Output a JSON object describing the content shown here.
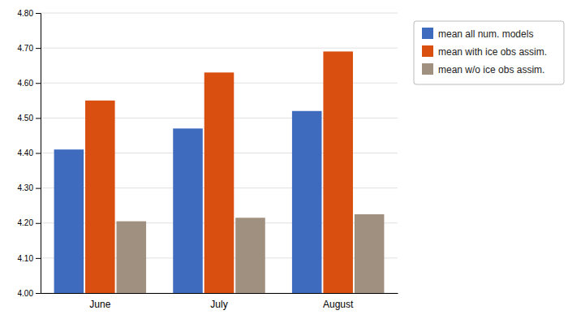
{
  "chart_data": {
    "type": "bar",
    "categories": [
      "June",
      "July",
      "August"
    ],
    "series": [
      {
        "name": "mean all num. models",
        "color": "#3f6bbf",
        "values": [
          4.41,
          4.47,
          4.52
        ]
      },
      {
        "name": "mean with ice obs assim.",
        "color": "#d94f10",
        "values": [
          4.55,
          4.63,
          4.69
        ]
      },
      {
        "name": "mean w/o ice obs assim.",
        "color": "#a09080",
        "values": [
          4.205,
          4.215,
          4.225
        ]
      }
    ],
    "ylim": [
      4.0,
      4.8
    ],
    "yticks": [
      {
        "value": 4.0,
        "label": "4.00"
      },
      {
        "value": 4.1,
        "label": "4.10"
      },
      {
        "value": 4.2,
        "label": "4.20"
      },
      {
        "value": 4.3,
        "label": "4.30"
      },
      {
        "value": 4.4,
        "label": "4.40"
      },
      {
        "value": 4.5,
        "label": "4.50"
      },
      {
        "value": 4.6,
        "label": "4.60"
      },
      {
        "value": 4.7,
        "label": "4.70"
      },
      {
        "value": 4.8,
        "label": "4.80"
      }
    ],
    "grid": true,
    "legend": "right"
  }
}
